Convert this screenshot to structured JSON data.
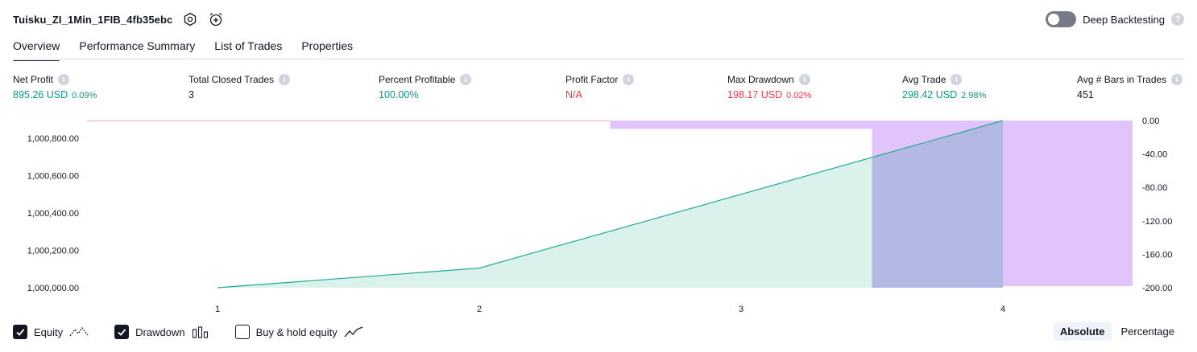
{
  "header": {
    "strategy_name": "Tuisku_ZI_1Min_1FIB_4fb35ebc",
    "icons": [
      "settings-icon",
      "add-alert-icon"
    ]
  },
  "deep_backtesting": {
    "label": "Deep Backtesting",
    "enabled": false,
    "help_icon": "question-icon"
  },
  "tabs": [
    {
      "label": "Overview",
      "active": true
    },
    {
      "label": "Performance Summary",
      "active": false
    },
    {
      "label": "List of Trades",
      "active": false
    },
    {
      "label": "Properties",
      "active": false
    }
  ],
  "metrics": [
    {
      "label": "Net Profit",
      "value": "895.26 USD",
      "pct": "0.09%",
      "color": "#089981"
    },
    {
      "label": "Total Closed Trades",
      "value": "3",
      "pct": "",
      "color": "#131722"
    },
    {
      "label": "Percent Profitable",
      "value": "100.00%",
      "pct": "",
      "color": "#089981"
    },
    {
      "label": "Profit Factor",
      "value": "N/A",
      "pct": "",
      "color": "#f23645"
    },
    {
      "label": "Max Drawdown",
      "value": "198.17 USD",
      "pct": "0.02%",
      "color": "#f23645"
    },
    {
      "label": "Avg Trade",
      "value": "298.42 USD",
      "pct": "2.98%",
      "color": "#089981"
    },
    {
      "label": "Avg # Bars in Trades",
      "value": "451",
      "pct": "",
      "color": "#131722"
    }
  ],
  "chart_data": {
    "type": "area",
    "x": [
      1,
      2,
      3,
      4
    ],
    "x_tick_labels": [
      "1",
      "2",
      "3",
      "4"
    ],
    "equity": {
      "x": [
        1,
        2,
        4
      ],
      "values": [
        1000000.0,
        1000105.0,
        1000895.26
      ]
    },
    "drawdown": {
      "bars": [
        {
          "x_start": 2.5,
          "x_end": 3.5,
          "value": -10
        },
        {
          "x_start": 3.5,
          "x_end": 4.0,
          "value": -198.17
        },
        {
          "x_start": 4.0,
          "x_end": 4.5,
          "value": -198.17
        }
      ]
    },
    "left_axis": {
      "ticks": [
        1000000,
        1000200,
        1000400,
        1000600,
        1000800
      ],
      "tick_labels": [
        "1,000,000.00",
        "1,000,200.00",
        "1,000,400.00",
        "1,000,600.00",
        "1,000,800.00"
      ],
      "range": [
        1000000,
        1000895.26
      ]
    },
    "right_axis": {
      "ticks": [
        0,
        -40,
        -80,
        -120,
        -160,
        -200
      ],
      "tick_labels": [
        "0.00",
        "-40.00",
        "-80.00",
        "-120.00",
        "-160.00",
        "-200.00"
      ],
      "range": [
        -200,
        0
      ]
    },
    "colors": {
      "equity_line": "#22ab94",
      "equity_fill": "#d4efe9",
      "drawdown": "#e1c4fb",
      "overlap": "#b3b8e4",
      "zero_line": "#f3a8c0"
    }
  },
  "footer": {
    "legend": [
      {
        "label": "Equity",
        "checked": true,
        "icon": "equity-line-icon"
      },
      {
        "label": "Drawdown",
        "checked": true,
        "icon": "drawdown-bars-icon"
      },
      {
        "label": "Buy & hold equity",
        "checked": false,
        "icon": "buy-hold-line-icon"
      }
    ],
    "modes": [
      {
        "label": "Absolute",
        "active": true
      },
      {
        "label": "Percentage",
        "active": false
      }
    ]
  }
}
